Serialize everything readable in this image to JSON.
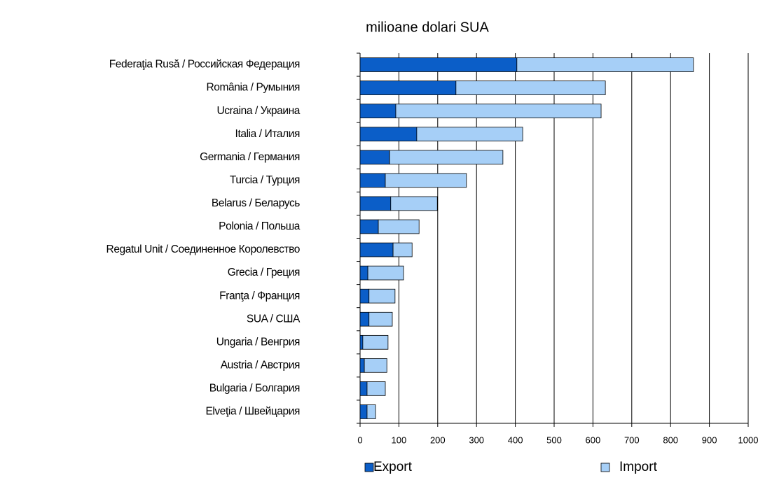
{
  "chart_data": {
    "type": "stacked_bar_horizontal",
    "title": "milioane dolari SUA",
    "categories": [
      "Federaţia Rusă / Российская Федерация",
      "România / Румыния",
      "Ucraina / Украина",
      "Italia / Италия",
      "Germania / Германия",
      "Turcia / Турция",
      "Belarus / Беларусь",
      "Polonia / Польша",
      "Regatul Unit / Соединенное Королевство",
      "Grecia / Греция",
      "Franţa / Франция",
      "SUA / США",
      "Ungaria / Венгрия",
      "Austria / Австрия",
      "Bulgaria / Болгария",
      "Elveţia / Швейцария"
    ],
    "series": [
      {
        "name": "Export",
        "color": "#0b5ec8",
        "values": [
          404,
          247,
          92,
          146,
          76,
          65,
          79,
          47,
          85,
          20,
          23,
          23,
          7,
          11,
          18,
          18
        ]
      },
      {
        "name": "Import",
        "color": "#a6cff7",
        "values": [
          455,
          385,
          529,
          273,
          292,
          209,
          120,
          105,
          49,
          92,
          67,
          60,
          65,
          58,
          47,
          22
        ]
      }
    ],
    "xlim": [
      0,
      1000
    ],
    "xticks": [
      0,
      100,
      200,
      300,
      400,
      500,
      600,
      700,
      800,
      900,
      1000
    ],
    "grid": true
  }
}
